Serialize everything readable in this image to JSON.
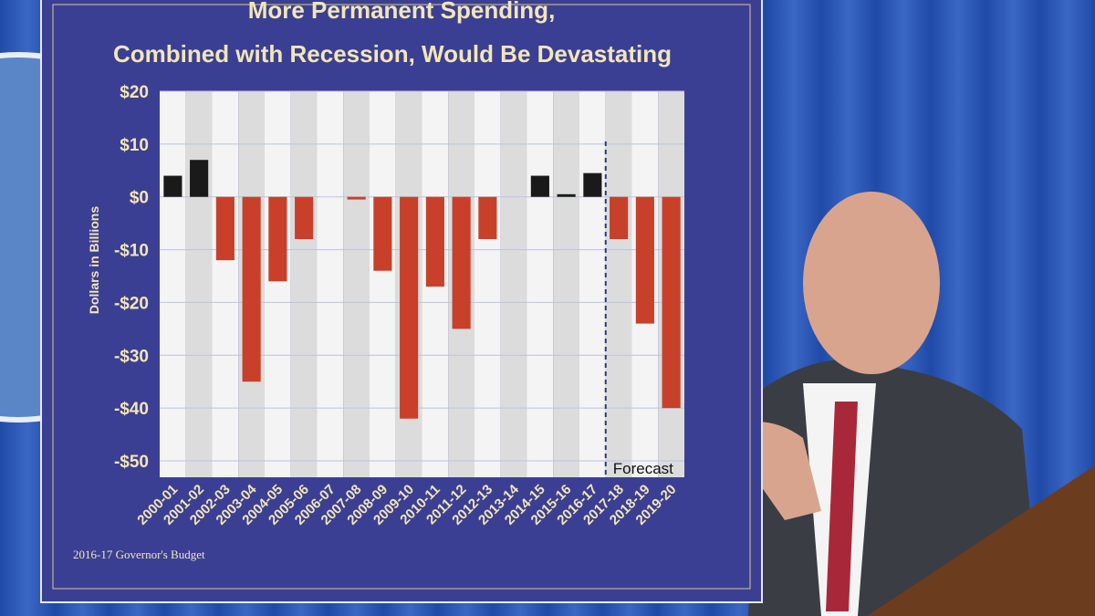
{
  "chart_data": {
    "type": "bar",
    "title": [
      "More Permanent Spending,",
      "Combined with Recession, Would Be Devastating"
    ],
    "ylabel": "Dollars in Billions",
    "annotation": "Forecast",
    "source": "2016-17 Governor's Budget",
    "categories": [
      "2000-01",
      "2001-02",
      "2002-03",
      "2003-04",
      "2004-05",
      "2005-06",
      "2006-07",
      "2007-08",
      "2008-09",
      "2009-10",
      "2010-11",
      "2011-12",
      "2012-13",
      "2013-14",
      "2014-15",
      "2015-16",
      "2016-17",
      "2017-18",
      "2018-19",
      "2019-20"
    ],
    "values": [
      4,
      7,
      -12,
      -35,
      -16,
      -8,
      0,
      -0.5,
      -14,
      -42,
      -17,
      -25,
      -8,
      0,
      4,
      0.5,
      4.5,
      -8,
      -24,
      -40
    ],
    "positive_color": "#1a1a1a",
    "negative_color": "#c8402a",
    "ylim": [
      -50,
      20
    ],
    "yticks": [
      {
        "value": -50,
        "label": "-$50"
      },
      {
        "value": -40,
        "label": "-$40"
      },
      {
        "value": -30,
        "label": "-$30"
      },
      {
        "value": -20,
        "label": "-$20"
      },
      {
        "value": -10,
        "label": "-$10"
      },
      {
        "value": 0,
        "label": "$0"
      },
      {
        "value": 10,
        "label": "$10"
      },
      {
        "value": 20,
        "label": "$20"
      }
    ],
    "grid": true
  }
}
